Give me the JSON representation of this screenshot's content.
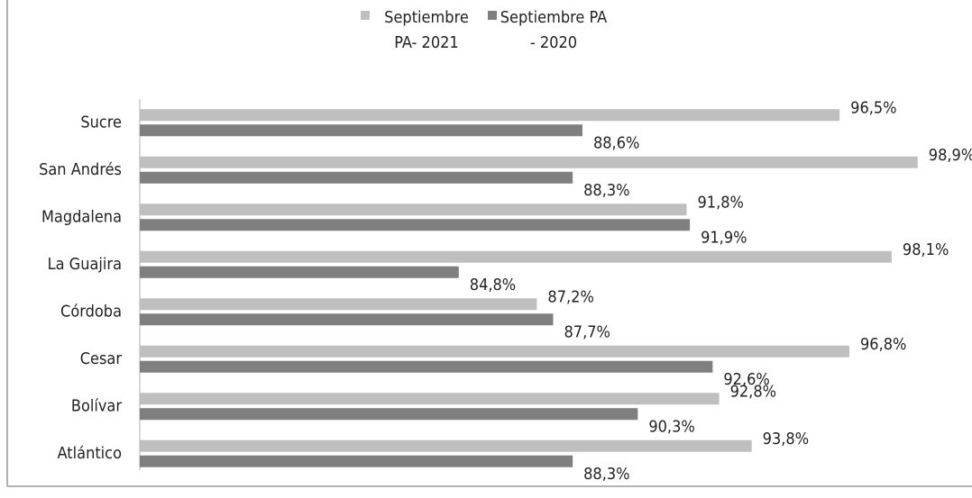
{
  "chart_data": {
    "type": "hbar",
    "categories": [
      "Sucre",
      "San Andrés",
      "Magdalena",
      "La Guajira",
      "Córdoba",
      "Cesar",
      "Bolívar",
      "Atlántico"
    ],
    "series": [
      {
        "name": "Septiembre PA- 2021",
        "color": "#bfbfbf",
        "values": [
          96.5,
          98.9,
          91.8,
          98.1,
          87.2,
          96.8,
          92.8,
          93.8
        ],
        "value_labels": [
          "96,5%",
          "98,9%",
          "91,8%",
          "98,1%",
          "87,2%",
          "96,8%",
          "92,8%",
          "93,8%"
        ]
      },
      {
        "name": "Septiembre PA - 2020",
        "color": "#7f7f7f",
        "values": [
          88.6,
          88.3,
          91.9,
          84.8,
          87.7,
          92.6,
          90.3,
          88.3
        ],
        "value_labels": [
          "88,6%",
          "88,3%",
          "91,9%",
          "84,8%",
          "87,7%",
          "92,6%",
          "90,3%",
          "88,3%"
        ]
      }
    ],
    "xlim": [
      75,
      100
    ],
    "legend": "top"
  }
}
